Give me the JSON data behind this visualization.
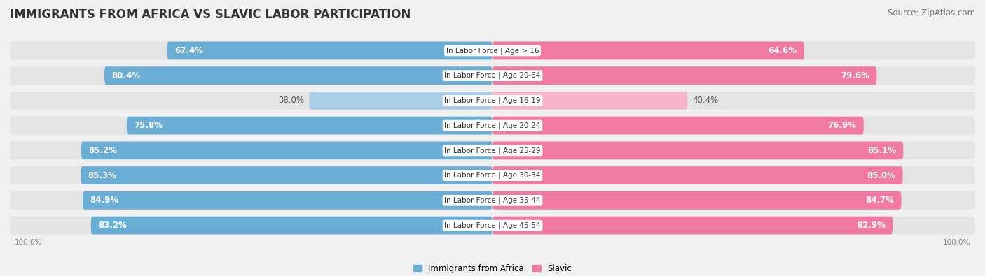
{
  "title": "IMMIGRANTS FROM AFRICA VS SLAVIC LABOR PARTICIPATION",
  "source": "Source: ZipAtlas.com",
  "categories": [
    "In Labor Force | Age > 16",
    "In Labor Force | Age 20-64",
    "In Labor Force | Age 16-19",
    "In Labor Force | Age 20-24",
    "In Labor Force | Age 25-29",
    "In Labor Force | Age 30-34",
    "In Labor Force | Age 35-44",
    "In Labor Force | Age 45-54"
  ],
  "africa_values": [
    67.4,
    80.4,
    38.0,
    75.8,
    85.2,
    85.3,
    84.9,
    83.2
  ],
  "slavic_values": [
    64.6,
    79.6,
    40.4,
    76.9,
    85.1,
    85.0,
    84.7,
    82.9
  ],
  "africa_color": "#6aaed6",
  "africa_color_light": "#aacde8",
  "slavic_color": "#f07aa0",
  "slavic_color_light": "#f7b3c8",
  "background_color": "#f0f0f0",
  "row_bg_color": "#e4e4e4",
  "axis_label": "100.0%",
  "legend_africa": "Immigrants from Africa",
  "legend_slavic": "Slavic",
  "title_fontsize": 12,
  "source_fontsize": 8.5,
  "bar_label_fontsize": 8.5,
  "category_fontsize": 7.5,
  "max_val": 100.0,
  "low_threshold": 50
}
